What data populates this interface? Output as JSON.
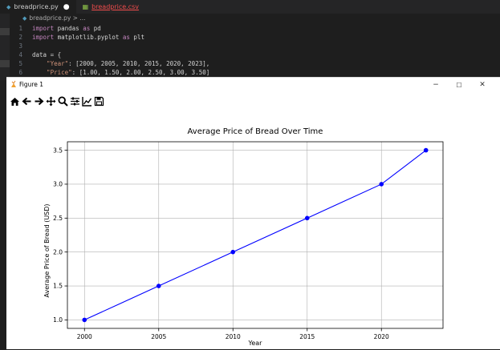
{
  "editor": {
    "tabs": [
      {
        "label": "breadprice.py",
        "modified_dot": "●"
      },
      {
        "label": "breadprice.csv"
      }
    ],
    "breadcrumb": "breadprice.py > ...",
    "lines": [
      {
        "num": "1",
        "parts": [
          {
            "c": "kw",
            "t": "import"
          },
          {
            "c": "tx",
            "t": " pandas "
          },
          {
            "c": "kw",
            "t": "as"
          },
          {
            "c": "tx",
            "t": " pd"
          }
        ]
      },
      {
        "num": "2",
        "parts": [
          {
            "c": "kw",
            "t": "import"
          },
          {
            "c": "tx",
            "t": " matplotlib.pyplot "
          },
          {
            "c": "kw",
            "t": "as"
          },
          {
            "c": "tx",
            "t": " plt"
          }
        ]
      },
      {
        "num": "3",
        "parts": []
      },
      {
        "num": "4",
        "parts": [
          {
            "c": "tx",
            "t": "data = {"
          }
        ]
      },
      {
        "num": "5",
        "parts": [
          {
            "c": "st",
            "t": "    \"Year\""
          },
          {
            "c": "tx",
            "t": ": [2000, 2005, 2010, 2015, 2020, 2023],"
          }
        ]
      },
      {
        "num": "6",
        "parts": [
          {
            "c": "st",
            "t": "    \"Price\""
          },
          {
            "c": "tx",
            "t": ": [1.00, 1.50, 2.00, 2.50, 3.00, 3.50]"
          }
        ]
      }
    ]
  },
  "window": {
    "title": "Figure 1",
    "controls": {
      "minimize": "−",
      "maximize": "☐",
      "close": "✕"
    }
  },
  "toolbar": {
    "icons": [
      "home-icon",
      "back-icon",
      "forward-icon",
      "pan-icon",
      "zoom-icon",
      "configure-subplots-icon",
      "edit-axis-icon",
      "save-icon"
    ]
  },
  "chart_data": {
    "type": "line",
    "title": "Average Price of Bread Over Time",
    "xlabel": "Year",
    "ylabel": "Average Price of Bread (USD)",
    "x": [
      2000,
      2005,
      2010,
      2015,
      2020,
      2023
    ],
    "series": [
      {
        "values": [
          1.0,
          1.5,
          2.0,
          2.5,
          3.0,
          3.5
        ],
        "color": "#0000ff",
        "marker": "o"
      }
    ],
    "xticks": [
      2000,
      2005,
      2010,
      2015,
      2020
    ],
    "xtick_labels": [
      "2000",
      "2005",
      "2010",
      "2015",
      "2020"
    ],
    "yticks": [
      1.0,
      1.5,
      2.0,
      2.5,
      3.0,
      3.5
    ],
    "ytick_labels": [
      "1.0",
      "1.5",
      "2.0",
      "2.5",
      "3.0",
      "3.5"
    ],
    "xlim": [
      1998.85,
      2024.15
    ],
    "ylim": [
      0.875,
      3.625
    ],
    "grid": true
  }
}
